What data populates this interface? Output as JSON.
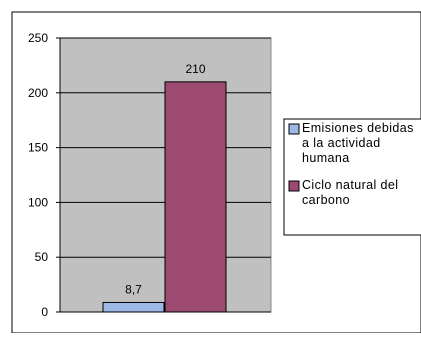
{
  "chart_data": {
    "type": "bar",
    "categories": [
      "Emisiones debidas a la actividad humana",
      "Ciclo natural del carbono"
    ],
    "values": [
      8.7,
      210
    ],
    "data_labels": [
      "8,7",
      "210"
    ],
    "series": [
      {
        "name": "Emisiones debidas a la actividad humana",
        "value": 8.7,
        "label": "8,7",
        "color": "#9db8e6"
      },
      {
        "name": "Ciclo natural del carbono",
        "value": 210,
        "label": "210",
        "color": "#9c4a72"
      }
    ],
    "y_ticks": [
      "0",
      "50",
      "100",
      "150",
      "200",
      "250"
    ],
    "ylim": [
      0,
      250
    ],
    "grid": true,
    "legend_position": "right",
    "legend_lines": [
      [
        "Emisiones debidas",
        "a la actividad",
        "humana"
      ],
      [
        "Ciclo natural del",
        "carbono"
      ]
    ],
    "title": "",
    "xlabel": "",
    "ylabel": "",
    "plot_background": "#c0c0c0"
  }
}
